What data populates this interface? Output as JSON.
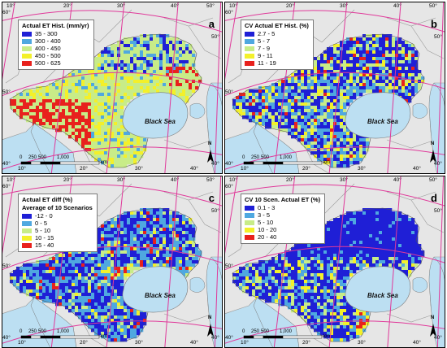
{
  "panels": [
    {
      "letter": "a",
      "legend_title": "Actual ET Hist. (mm/yr)",
      "legend_subtitle": "",
      "legend": [
        {
          "label": "35 - 300",
          "color": "#1f1fd6"
        },
        {
          "label": "300 - 400",
          "color": "#4fa8e0"
        },
        {
          "label": "400 - 450",
          "color": "#c8ec88"
        },
        {
          "label": "450 - 500",
          "color": "#f3f02a"
        },
        {
          "label": "500 - 625",
          "color": "#e8211d"
        }
      ],
      "sea_label": "Black Sea"
    },
    {
      "letter": "b",
      "legend_title": "CV Actual ET Hist. (%)",
      "legend_subtitle": "",
      "legend": [
        {
          "label": "2.7 - 5",
          "color": "#1f1fd6"
        },
        {
          "label": "5 - 7",
          "color": "#4fa8e0"
        },
        {
          "label": "7 - 9",
          "color": "#c8ec88"
        },
        {
          "label": "9 - 11",
          "color": "#f3f02a"
        },
        {
          "label": "11 - 19",
          "color": "#e8211d"
        }
      ],
      "sea_label": "Black Sea"
    },
    {
      "letter": "c",
      "legend_title": "Actual ET diff (%)",
      "legend_subtitle": "Average of 10 Scenarios",
      "legend": [
        {
          "label": "-12 - 0",
          "color": "#1f1fd6"
        },
        {
          "label": "0 - 5",
          "color": "#4fa8e0"
        },
        {
          "label": "5 - 10",
          "color": "#c8ec88"
        },
        {
          "label": "10 - 15",
          "color": "#f3f02a"
        },
        {
          "label": "15 - 40",
          "color": "#e8211d"
        }
      ],
      "sea_label": "Black Sea"
    },
    {
      "letter": "d",
      "legend_title": "CV 10 Scen. Actual ET (%)",
      "legend_subtitle": "",
      "legend": [
        {
          "label": "0.1 - 3",
          "color": "#1f1fd6"
        },
        {
          "label": "3 - 5",
          "color": "#4fa8e0"
        },
        {
          "label": "5 - 10",
          "color": "#c8ec88"
        },
        {
          "label": "10 - 20",
          "color": "#f3f02a"
        },
        {
          "label": "20 - 40",
          "color": "#e8211d"
        }
      ],
      "sea_label": "Black Sea"
    }
  ],
  "graticule": {
    "top_labels": [
      "10°",
      "20°",
      "30°",
      "40°",
      "50°"
    ],
    "bottom_labels": [
      "10°",
      "20°",
      "30°",
      "40°"
    ],
    "left_labels": [
      "60°",
      "50°",
      "40°"
    ],
    "right_labels": [
      "50°",
      "40°"
    ]
  },
  "scale_bar": {
    "labels": [
      "0",
      "250",
      "500",
      "1,000"
    ],
    "unit": "km"
  },
  "north_label": "N",
  "colors": {
    "land": "#e6e6e6",
    "water": "#bcdff2",
    "graticule": "#e0399a",
    "border": "#9a9a9a"
  }
}
